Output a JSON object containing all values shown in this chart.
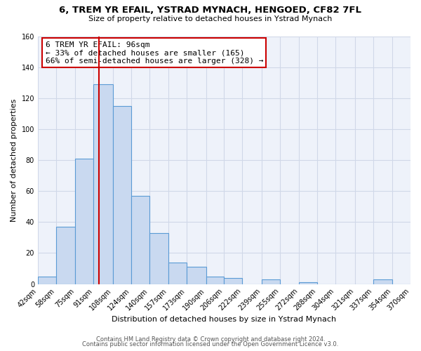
{
  "title": "6, TREM YR EFAIL, YSTRAD MYNACH, HENGOED, CF82 7FL",
  "subtitle": "Size of property relative to detached houses in Ystrad Mynach",
  "xlabel": "Distribution of detached houses by size in Ystrad Mynach",
  "ylabel": "Number of detached properties",
  "bin_edges": [
    42,
    58,
    75,
    91,
    108,
    124,
    140,
    157,
    173,
    190,
    206,
    222,
    239,
    255,
    272,
    288,
    304,
    321,
    337,
    354,
    370
  ],
  "bar_heights": [
    5,
    37,
    81,
    129,
    115,
    57,
    33,
    14,
    11,
    5,
    4,
    0,
    3,
    0,
    1,
    0,
    0,
    0,
    3,
    0
  ],
  "bar_color": "#c9d9f0",
  "bar_edge_color": "#5b9bd5",
  "red_line_x": 96,
  "annotation_text": "6 TREM YR EFAIL: 96sqm\n← 33% of detached houses are smaller (165)\n66% of semi-detached houses are larger (328) →",
  "annotation_box_color": "#ffffff",
  "annotation_box_edge_color": "#cc0000",
  "red_line_color": "#cc0000",
  "tick_labels": [
    "42sqm",
    "58sqm",
    "75sqm",
    "91sqm",
    "108sqm",
    "124sqm",
    "140sqm",
    "157sqm",
    "173sqm",
    "190sqm",
    "206sqm",
    "222sqm",
    "239sqm",
    "255sqm",
    "272sqm",
    "288sqm",
    "304sqm",
    "321sqm",
    "337sqm",
    "354sqm",
    "370sqm"
  ],
  "ylim": [
    0,
    160
  ],
  "yticks": [
    0,
    20,
    40,
    60,
    80,
    100,
    120,
    140,
    160
  ],
  "footer1": "Contains HM Land Registry data © Crown copyright and database right 2024.",
  "footer2": "Contains public sector information licensed under the Open Government Licence v3.0.",
  "grid_color": "#d0d8e8",
  "background_color": "#eef2fa",
  "fig_width": 6.0,
  "fig_height": 5.0,
  "dpi": 100
}
